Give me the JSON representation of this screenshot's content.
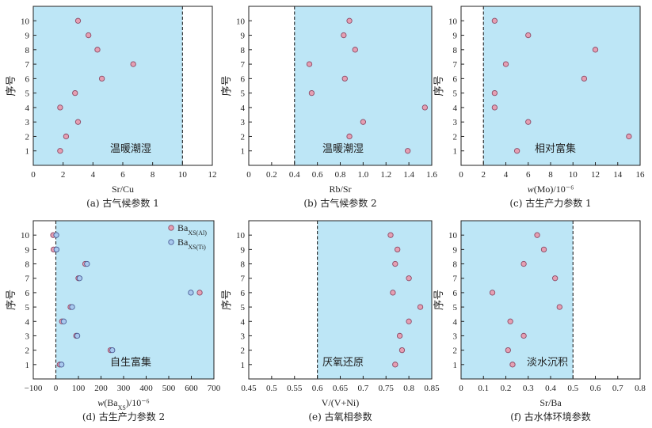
{
  "colors": {
    "shade": "#bde6f6",
    "marker_fill": "#e59fb2",
    "marker_stroke": "#8c4a66",
    "marker2_fill": "#a9c9ee",
    "marker2_stroke": "#4a5c96",
    "axis": "#222222",
    "threshold_line": "#222222"
  },
  "chart_data": [
    {
      "type": "scatter",
      "xlabel": "Sr/Cu",
      "ylabel": "序号",
      "caption": "(a) 古气候参数 1",
      "annotation": "温暖潮湿",
      "xlim": [
        0,
        12
      ],
      "xticks": [
        "0",
        "2",
        "4",
        "6",
        "8",
        "10",
        "12"
      ],
      "ylim": [
        0,
        11
      ],
      "yticks": [
        "1",
        "2",
        "3",
        "4",
        "5",
        "6",
        "7",
        "8",
        "9",
        "10"
      ],
      "threshold": 10,
      "shaded_range": [
        0,
        10
      ],
      "series": [
        {
          "points": [
            [
              1.8,
              1
            ],
            [
              2.2,
              2
            ],
            [
              3.0,
              3
            ],
            [
              1.8,
              4
            ],
            [
              2.8,
              5
            ],
            [
              4.6,
              6
            ],
            [
              6.7,
              7
            ],
            [
              4.3,
              8
            ],
            [
              3.7,
              9
            ],
            [
              3.0,
              10
            ]
          ]
        }
      ]
    },
    {
      "type": "scatter",
      "xlabel": "Rb/Sr",
      "ylabel": "序号",
      "caption": "(b) 古气候参数 2",
      "annotation": "温暖潮湿",
      "xlim": [
        0,
        1.6
      ],
      "xticks": [
        "0",
        "0.2",
        "0.4",
        "0.6",
        "0.8",
        "1.0",
        "1.2",
        "1.4",
        "1.6"
      ],
      "ylim": [
        0,
        11
      ],
      "yticks": [
        "1",
        "2",
        "3",
        "4",
        "5",
        "6",
        "7",
        "8",
        "9",
        "10"
      ],
      "threshold": 0.4,
      "shaded_range": [
        0.4,
        1.6
      ],
      "series": [
        {
          "points": [
            [
              1.39,
              1
            ],
            [
              0.88,
              2
            ],
            [
              1.0,
              3
            ],
            [
              1.54,
              4
            ],
            [
              0.55,
              5
            ],
            [
              0.84,
              6
            ],
            [
              0.53,
              7
            ],
            [
              0.93,
              8
            ],
            [
              0.83,
              9
            ],
            [
              0.88,
              10
            ]
          ]
        }
      ]
    },
    {
      "type": "scatter",
      "xlabel": "w(Mo)/10⁻⁶",
      "ylabel": "序号",
      "caption": "(c) 古生产力参数 1",
      "annotation": "相对富集",
      "xlim": [
        0,
        16
      ],
      "xticks": [
        "0",
        "2",
        "4",
        "6",
        "8",
        "10",
        "12",
        "14",
        "16"
      ],
      "ylim": [
        0,
        11
      ],
      "yticks": [
        "1",
        "2",
        "3",
        "4",
        "5",
        "6",
        "7",
        "8",
        "9",
        "10"
      ],
      "threshold": 2,
      "shaded_range": [
        2,
        16
      ],
      "series": [
        {
          "points": [
            [
              5.0,
              1
            ],
            [
              15.0,
              2
            ],
            [
              6.0,
              3
            ],
            [
              3.0,
              4
            ],
            [
              3.0,
              5
            ],
            [
              11.0,
              6
            ],
            [
              4.0,
              7
            ],
            [
              12.0,
              8
            ],
            [
              6.0,
              9
            ],
            [
              3.0,
              10
            ]
          ]
        }
      ]
    },
    {
      "type": "scatter",
      "xlabel": "w(Ba_XS)/10⁻⁶",
      "ylabel": "序号",
      "caption": "(d) 古生产力参数 2",
      "annotation": "自生富集",
      "xlim": [
        -100,
        700
      ],
      "xticks": [
        "−100",
        "0",
        "100",
        "200",
        "300",
        "400",
        "500",
        "600",
        "700"
      ],
      "ylim": [
        0,
        11
      ],
      "yticks": [
        "1",
        "2",
        "3",
        "4",
        "5",
        "6",
        "7",
        "8",
        "9",
        "10"
      ],
      "threshold": 0,
      "shaded_range": [
        0,
        700
      ],
      "legend_position": "top-right",
      "series": [
        {
          "name": "Ba",
          "name_sub": "XS(Al)",
          "style": "pink",
          "points": [
            [
              17,
              1
            ],
            [
              242,
              2
            ],
            [
              90,
              3
            ],
            [
              27,
              4
            ],
            [
              65,
              5
            ],
            [
              637,
              6
            ],
            [
              100,
              7
            ],
            [
              130,
              8
            ],
            [
              -10,
              9
            ],
            [
              -12,
              10
            ]
          ]
        },
        {
          "name": "Ba",
          "name_sub": "XS(Ti)",
          "style": "blue",
          "points": [
            [
              25,
              1
            ],
            [
              250,
              2
            ],
            [
              95,
              3
            ],
            [
              35,
              4
            ],
            [
              72,
              5
            ],
            [
              598,
              6
            ],
            [
              105,
              7
            ],
            [
              138,
              8
            ],
            [
              3,
              9
            ],
            [
              2,
              10
            ]
          ]
        }
      ]
    },
    {
      "type": "scatter",
      "xlabel": "V/(V+Ni)",
      "ylabel": "序号",
      "caption": "(e) 古氧相参数",
      "annotation": "厌氧还原",
      "xlim": [
        0.45,
        0.85
      ],
      "xticks": [
        "0.45",
        "0.5",
        "0.55",
        "0.6",
        "0.65",
        "0.7",
        "0.75",
        "0.8",
        "0.85"
      ],
      "ylim": [
        0,
        11
      ],
      "yticks": [
        "1",
        "2",
        "3",
        "4",
        "5",
        "6",
        "7",
        "8",
        "9",
        "10"
      ],
      "threshold": 0.6,
      "shaded_range": [
        0.6,
        0.85
      ],
      "series": [
        {
          "points": [
            [
              0.77,
              1
            ],
            [
              0.785,
              2
            ],
            [
              0.78,
              3
            ],
            [
              0.8,
              4
            ],
            [
              0.825,
              5
            ],
            [
              0.765,
              6
            ],
            [
              0.8,
              7
            ],
            [
              0.77,
              8
            ],
            [
              0.775,
              9
            ],
            [
              0.76,
              10
            ]
          ]
        }
      ]
    },
    {
      "type": "scatter",
      "xlabel": "Sr/Ba",
      "ylabel": "序号",
      "caption": "(f) 古水体环境参数",
      "annotation": "淡水沉积",
      "xlim": [
        0,
        0.8
      ],
      "xticks": [
        "0",
        "0.1",
        "0.2",
        "0.3",
        "0.4",
        "0.5",
        "0.6",
        "0.7",
        "0.8"
      ],
      "ylim": [
        0,
        11
      ],
      "yticks": [
        "1",
        "2",
        "3",
        "4",
        "5",
        "6",
        "7",
        "8",
        "9",
        "10"
      ],
      "threshold": 0.5,
      "shaded_range": [
        0,
        0.5
      ],
      "series": [
        {
          "points": [
            [
              0.23,
              1
            ],
            [
              0.21,
              2
            ],
            [
              0.28,
              3
            ],
            [
              0.22,
              4
            ],
            [
              0.44,
              5
            ],
            [
              0.14,
              6
            ],
            [
              0.42,
              7
            ],
            [
              0.28,
              8
            ],
            [
              0.37,
              9
            ],
            [
              0.34,
              10
            ]
          ]
        }
      ]
    }
  ]
}
